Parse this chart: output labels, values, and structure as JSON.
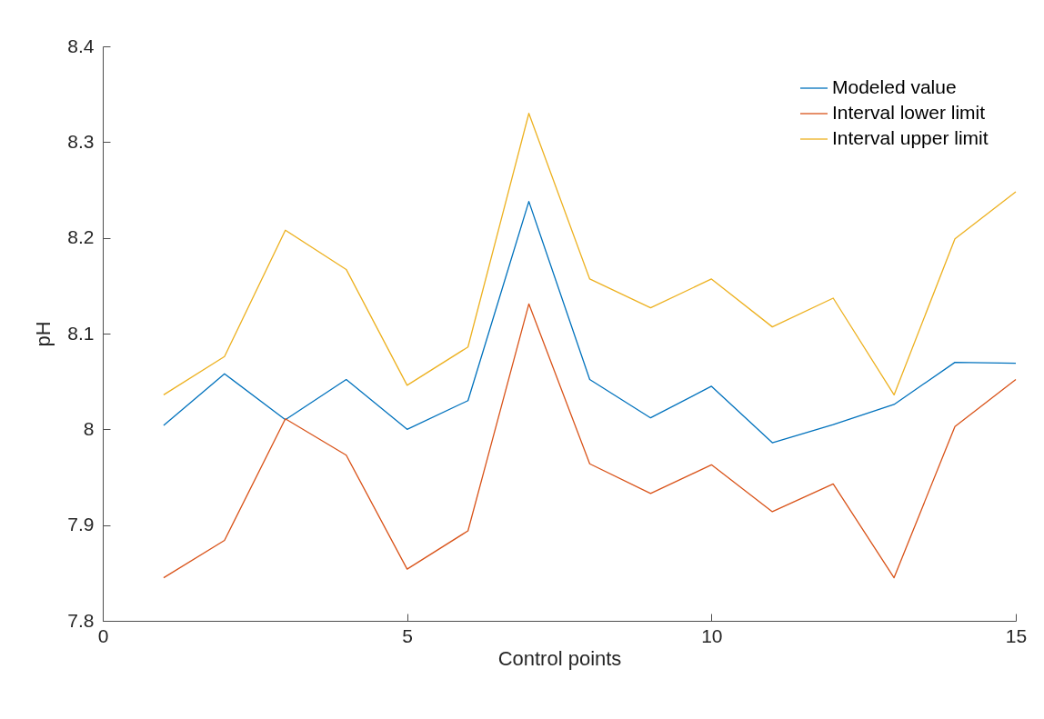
{
  "chart_data": {
    "type": "line",
    "xlabel": "Control points",
    "ylabel": "pH",
    "x": [
      1,
      2,
      3,
      4,
      5,
      6,
      7,
      8,
      9,
      10,
      11,
      12,
      13,
      14,
      15
    ],
    "series": [
      {
        "name": "Modeled value",
        "color": "#0072bd",
        "values": [
          8.004,
          8.058,
          8.01,
          8.052,
          8.0,
          8.03,
          8.238,
          8.052,
          8.012,
          8.045,
          7.986,
          8.005,
          8.026,
          8.07,
          8.069
        ]
      },
      {
        "name": "Interval lower limit",
        "color": "#d95319",
        "values": [
          7.845,
          7.884,
          8.011,
          7.973,
          7.854,
          7.894,
          8.131,
          7.964,
          7.933,
          7.963,
          7.914,
          7.943,
          7.845,
          8.003,
          8.052
        ]
      },
      {
        "name": "Interval upper limit",
        "color": "#edb120",
        "values": [
          8.036,
          8.076,
          8.208,
          8.167,
          8.046,
          8.086,
          8.33,
          8.157,
          8.127,
          8.157,
          8.107,
          8.137,
          8.036,
          8.199,
          8.248
        ]
      }
    ],
    "xlim": [
      0,
      15
    ],
    "xticks": [
      0,
      5,
      10,
      15
    ],
    "ylim": [
      7.8,
      8.4
    ],
    "yticks": [
      7.8,
      7.9,
      8,
      8.1,
      8.2,
      8.3,
      8.4
    ],
    "grid": false,
    "legend": "top right",
    "marker": "none",
    "line_style": "solid"
  }
}
